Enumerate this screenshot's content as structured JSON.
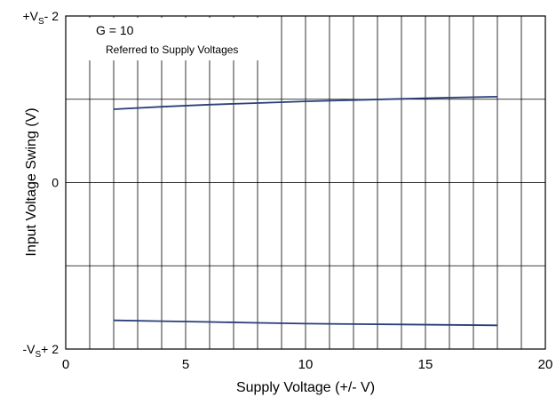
{
  "chart_data": {
    "type": "line",
    "xlabel": "Supply Voltage (+/- V)",
    "ylabel": "Input Voltage Swing (V)",
    "xlim": [
      0,
      20
    ],
    "ylim": [
      -2,
      2
    ],
    "x_ticks": [
      0,
      5,
      10,
      15,
      20
    ],
    "y_ticks": [
      {
        "value": 2,
        "pre": "+V",
        "sub": "S",
        "post": "- 2"
      },
      {
        "value": 0,
        "pre": "0",
        "sub": "",
        "post": ""
      },
      {
        "value": -2,
        "pre": "-V",
        "sub": "S",
        "post": "+ 2"
      }
    ],
    "grid": true,
    "annotations": [
      "G = 10",
      "Referred to Supply Voltages"
    ],
    "series": [
      {
        "x": [
          2,
          4,
          6,
          8,
          10,
          12,
          14,
          16,
          18
        ],
        "y": [
          0.88,
          0.91,
          0.935,
          0.955,
          0.975,
          0.99,
          1.005,
          1.02,
          1.03
        ]
      },
      {
        "x": [
          2,
          4,
          6,
          8,
          10,
          12,
          14,
          16,
          18
        ],
        "y": [
          -1.655,
          -1.665,
          -1.675,
          -1.685,
          -1.695,
          -1.7,
          -1.705,
          -1.71,
          -1.715
        ]
      }
    ],
    "colors": {
      "line": "#2a3f7a",
      "grid": "#000000",
      "frame": "#000000"
    }
  }
}
